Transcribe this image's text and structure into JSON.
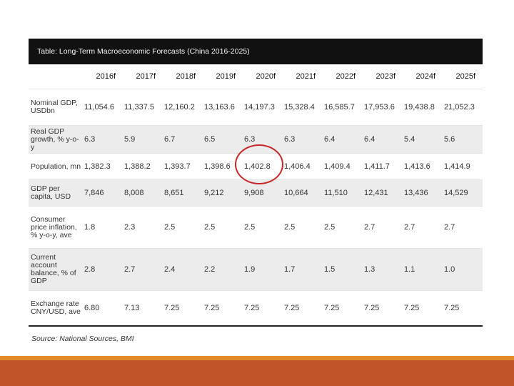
{
  "table": {
    "title": "Table: Long-Term Macroeconomic Forecasts (China 2016-2025)",
    "columns": [
      "",
      "2016f",
      "2017f",
      "2018f",
      "2019f",
      "2020f",
      "2021f",
      "2022f",
      "2023f",
      "2024f",
      "2025f"
    ],
    "rows": [
      {
        "label": "Nominal GDP, USDbn",
        "values": [
          "11,054.6",
          "11,337.5",
          "12,160.2",
          "13,163.6",
          "14,197.3",
          "15,328.4",
          "16,585.7",
          "17,953.6",
          "19,438.8",
          "21,052.3"
        ]
      },
      {
        "label": "Real GDP growth, % y-o-y",
        "values": [
          "6.3",
          "5.9",
          "6.7",
          "6.5",
          "6.3",
          "6.3",
          "6.4",
          "6.4",
          "5.4",
          "5.6"
        ]
      },
      {
        "label": "Population, mn",
        "values": [
          "1,382.3",
          "1,388.2",
          "1,393.7",
          "1,398.6",
          "1,402.8",
          "1,406.4",
          "1,409.4",
          "1,411.7",
          "1,413.6",
          "1,414.9"
        ]
      },
      {
        "label": "GDP per capita, USD",
        "values": [
          "7,846",
          "8,008",
          "8,651",
          "9,212",
          "9,908",
          "10,664",
          "11,510",
          "12,431",
          "13,436",
          "14,529"
        ]
      },
      {
        "label": "Consumer price inflation, % y-o-y, ave",
        "values": [
          "1.8",
          "2.3",
          "2.5",
          "2.5",
          "2.5",
          "2.5",
          "2.5",
          "2.7",
          "2.7",
          "2.7"
        ]
      },
      {
        "label": "Current account balance, % of GDP",
        "values": [
          "2.8",
          "2.7",
          "2.4",
          "2.2",
          "1.9",
          "1.7",
          "1.5",
          "1.3",
          "1.1",
          "1.0"
        ]
      },
      {
        "label": "Exchange rate CNY/USD, ave",
        "values": [
          "6.80",
          "7.13",
          "7.25",
          "7.25",
          "7.25",
          "7.25",
          "7.25",
          "7.25",
          "7.25",
          "7.25"
        ]
      }
    ],
    "source": "Source: National Sources, BMI"
  },
  "colors": {
    "accent_orange": "#e08a2c",
    "footer_bar": "#c0552a",
    "highlight": "#c62828",
    "title_bar": "#111111"
  }
}
